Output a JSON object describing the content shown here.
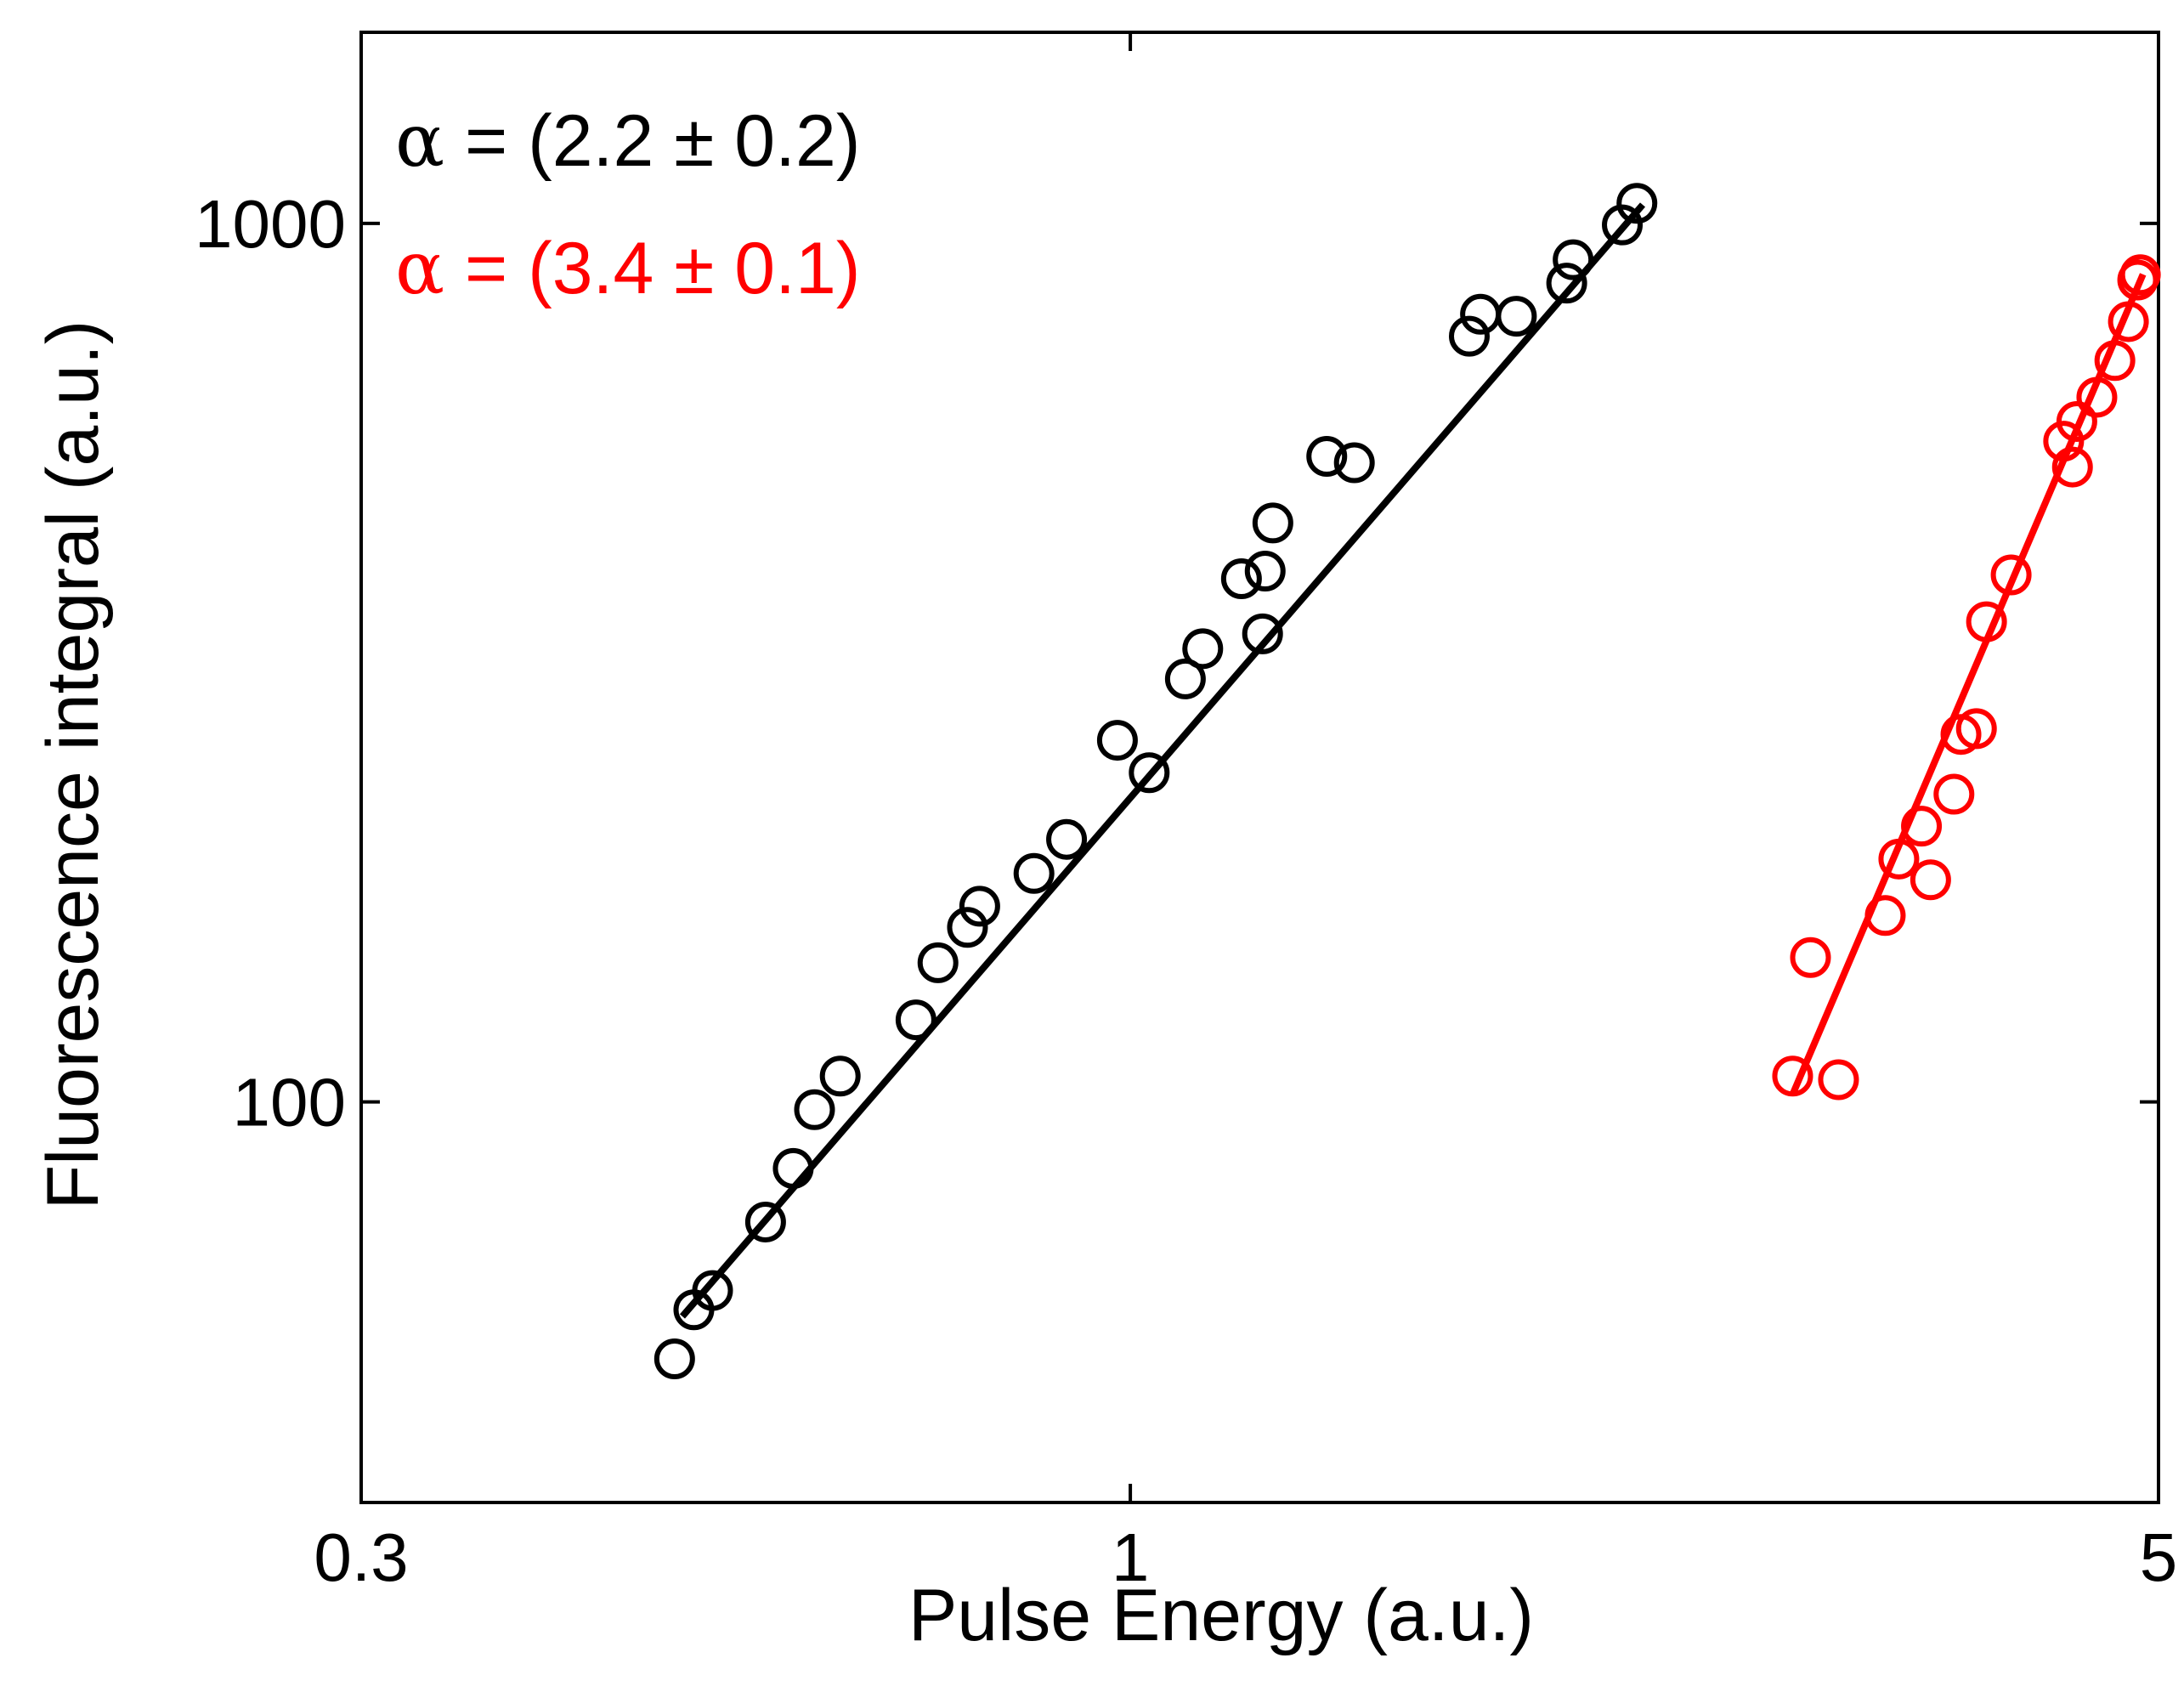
{
  "chart_data": {
    "type": "scatter",
    "title": "",
    "xlabel": "Pulse Energy (a.u.)",
    "ylabel": "Fluorescence integral (a.u.)",
    "xscale": "log",
    "yscale": "log",
    "xlim": [
      0.3,
      5
    ],
    "ylim": [
      35,
      1650
    ],
    "x_ticks": [
      {
        "value": 0.3,
        "label": "0.3"
      },
      {
        "value": 1,
        "label": "1"
      },
      {
        "value": 5,
        "label": "5"
      }
    ],
    "y_ticks": [
      {
        "value": 100,
        "label": "100"
      },
      {
        "value": 1000,
        "label": "1000"
      }
    ],
    "grid": false,
    "legend": "none",
    "annotations": [
      {
        "symbol": "α",
        "text": " = (2.2 ± 0.2)",
        "color": "#000000"
      },
      {
        "symbol": "α",
        "text": " = (3.4 ± 0.1)",
        "color": "#ff0000"
      }
    ],
    "series": [
      {
        "name": "series-black",
        "color": "#000000",
        "slope": 2.2,
        "fit": {
          "x": [
            0.496,
            2.23
          ],
          "y": [
            57,
            1050
          ]
        },
        "points": [
          {
            "x": 0.49,
            "y": 51
          },
          {
            "x": 0.505,
            "y": 58
          },
          {
            "x": 0.52,
            "y": 61
          },
          {
            "x": 0.565,
            "y": 73
          },
          {
            "x": 0.59,
            "y": 84
          },
          {
            "x": 0.61,
            "y": 98
          },
          {
            "x": 0.635,
            "y": 107
          },
          {
            "x": 0.715,
            "y": 124
          },
          {
            "x": 0.74,
            "y": 144
          },
          {
            "x": 0.775,
            "y": 158
          },
          {
            "x": 0.79,
            "y": 167
          },
          {
            "x": 0.86,
            "y": 182
          },
          {
            "x": 0.905,
            "y": 199
          },
          {
            "x": 0.98,
            "y": 258
          },
          {
            "x": 1.03,
            "y": 237
          },
          {
            "x": 1.09,
            "y": 303
          },
          {
            "x": 1.12,
            "y": 328
          },
          {
            "x": 1.19,
            "y": 394
          },
          {
            "x": 1.23,
            "y": 341
          },
          {
            "x": 1.235,
            "y": 402
          },
          {
            "x": 1.25,
            "y": 456
          },
          {
            "x": 1.36,
            "y": 543
          },
          {
            "x": 1.42,
            "y": 534
          },
          {
            "x": 1.7,
            "y": 744
          },
          {
            "x": 1.73,
            "y": 788
          },
          {
            "x": 1.83,
            "y": 784
          },
          {
            "x": 1.98,
            "y": 855
          },
          {
            "x": 2.0,
            "y": 909
          },
          {
            "x": 2.16,
            "y": 996
          },
          {
            "x": 2.21,
            "y": 1054
          }
        ]
      },
      {
        "name": "series-red",
        "color": "#ff0000",
        "slope": 3.4,
        "fit": {
          "x": [
            2.82,
            4.88
          ],
          "y": [
            102,
            875
          ]
        },
        "points": [
          {
            "x": 2.82,
            "y": 107
          },
          {
            "x": 2.9,
            "y": 146
          },
          {
            "x": 3.03,
            "y": 106
          },
          {
            "x": 3.26,
            "y": 163
          },
          {
            "x": 3.33,
            "y": 189
          },
          {
            "x": 3.45,
            "y": 206
          },
          {
            "x": 3.5,
            "y": 179
          },
          {
            "x": 3.63,
            "y": 224
          },
          {
            "x": 3.67,
            "y": 262
          },
          {
            "x": 3.76,
            "y": 266
          },
          {
            "x": 3.82,
            "y": 352
          },
          {
            "x": 3.97,
            "y": 398
          },
          {
            "x": 4.31,
            "y": 565
          },
          {
            "x": 4.37,
            "y": 528
          },
          {
            "x": 4.4,
            "y": 595
          },
          {
            "x": 4.54,
            "y": 634
          },
          {
            "x": 4.67,
            "y": 698
          },
          {
            "x": 4.77,
            "y": 773
          },
          {
            "x": 4.84,
            "y": 862
          },
          {
            "x": 4.86,
            "y": 874
          }
        ]
      }
    ]
  }
}
